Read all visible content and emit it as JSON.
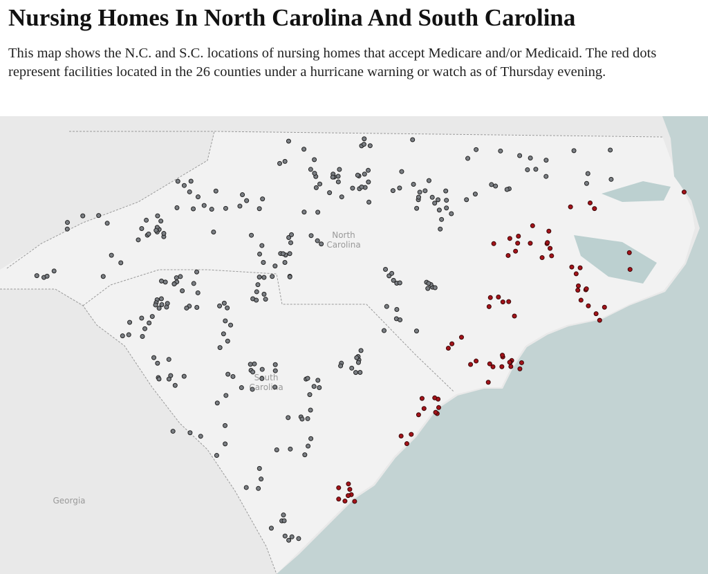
{
  "header": {
    "title": "Nursing Homes In North Carolina And South Carolina",
    "description": "This map shows the N.C. and S.C. locations of nursing homes that accept Medicare and/or Medicaid. The red dots represent facilities located in the 26 counties under a hurricane warning or watch as of Thursday evening."
  },
  "map": {
    "north_carolina": [
      "North",
      "Carolina"
    ],
    "south_carolina": [
      "South",
      "Carolina"
    ],
    "georgia": "Georgia"
  }
}
